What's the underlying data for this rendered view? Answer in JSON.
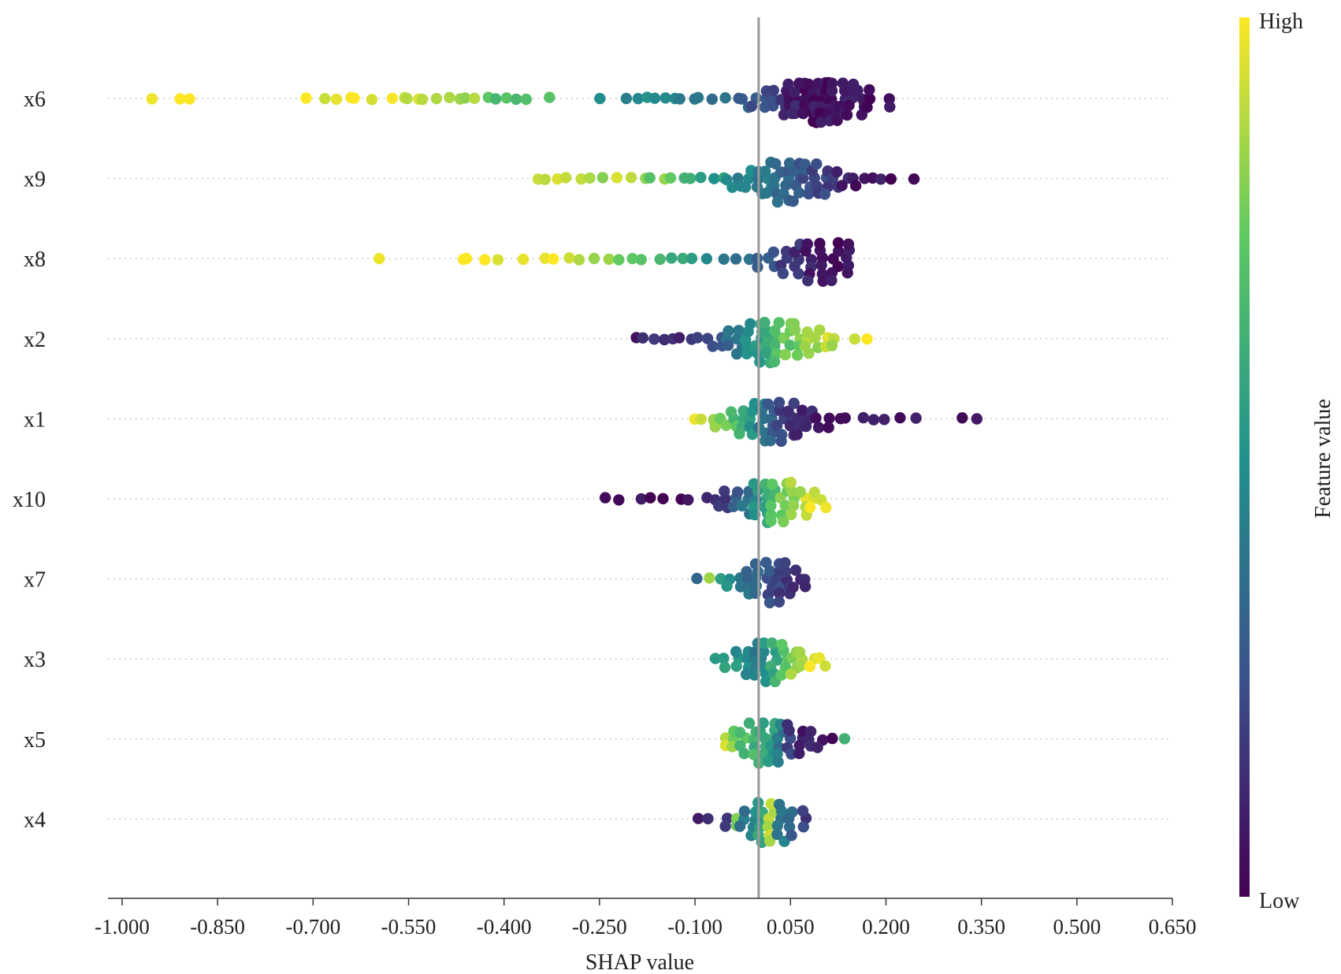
{
  "chart_data": {
    "type": "scatter",
    "subtype": "shap-beeswarm",
    "title": "",
    "xlabel": "SHAP value",
    "ylabel": "",
    "xlim": [
      -1.015,
      0.65
    ],
    "x_ticks": [
      "-1.000",
      "-0.850",
      "-0.700",
      "-0.550",
      "-0.400",
      "-0.250",
      "-0.100",
      "0.050",
      "0.200",
      "0.350",
      "0.500",
      "0.650"
    ],
    "x_tick_values": [
      -1.0,
      -0.85,
      -0.7,
      -0.55,
      -0.4,
      -0.25,
      -0.1,
      0.05,
      0.2,
      0.35,
      0.5,
      0.65
    ],
    "zero_line": 0,
    "features": [
      "x6",
      "x9",
      "x8",
      "x2",
      "x1",
      "x10",
      "x7",
      "x3",
      "x5",
      "x4"
    ],
    "colorbar": {
      "title": "Feature value",
      "high_label": "High",
      "low_label": "Low",
      "colormap": "viridis",
      "colors": [
        "#440154",
        "#3b528b",
        "#21918c",
        "#5ec962",
        "#fde725"
      ]
    },
    "series": [
      {
        "name": "x6",
        "points": [
          [
            -0.955,
            1.0
          ],
          [
            -0.915,
            1.0
          ],
          [
            -0.89,
            1.0
          ],
          [
            -0.715,
            1.0
          ],
          [
            -0.685,
            0.95
          ],
          [
            -0.66,
            1.0
          ],
          [
            -0.645,
            0.95
          ],
          [
            -0.635,
            1.0
          ],
          [
            -0.605,
            0.95
          ],
          [
            -0.58,
            1.0
          ],
          [
            -0.56,
            0.95
          ],
          [
            -0.55,
            0.9
          ],
          [
            -0.54,
            0.95
          ],
          [
            -0.525,
            0.9
          ],
          [
            -0.51,
            0.9
          ],
          [
            -0.49,
            0.85
          ],
          [
            -0.47,
            0.9
          ],
          [
            -0.46,
            0.8
          ],
          [
            -0.445,
            0.9
          ],
          [
            -0.43,
            0.75
          ],
          [
            -0.41,
            0.7
          ],
          [
            -0.39,
            0.75
          ],
          [
            -0.38,
            0.7
          ],
          [
            -0.365,
            0.7
          ],
          [
            -0.33,
            0.7
          ],
          [
            -0.25,
            0.5
          ],
          [
            -0.21,
            0.45
          ],
          [
            -0.195,
            0.5
          ],
          [
            -0.18,
            0.5
          ],
          [
            -0.165,
            0.45
          ],
          [
            -0.15,
            0.45
          ],
          [
            -0.135,
            0.4
          ],
          [
            -0.12,
            0.4
          ],
          [
            -0.105,
            0.38
          ],
          [
            -0.09,
            0.35
          ],
          [
            -0.07,
            0.35
          ],
          [
            -0.05,
            0.35
          ],
          [
            -0.035,
            0.3
          ],
          [
            -0.02,
            0.3
          ],
          [
            -0.005,
            0.25
          ],
          [
            0.01,
            0.25
          ],
          [
            0.025,
            0.22
          ],
          [
            0.04,
            0.15
          ],
          [
            0.05,
            0.1
          ],
          [
            0.06,
            0.08
          ],
          [
            0.07,
            0.05
          ],
          [
            0.08,
            0.05
          ],
          [
            0.09,
            0.05
          ],
          [
            0.1,
            0.05
          ],
          [
            0.11,
            0.05
          ],
          [
            0.12,
            0.05
          ],
          [
            0.13,
            0.08
          ],
          [
            0.145,
            0.08
          ],
          [
            0.16,
            0.05
          ],
          [
            0.175,
            0.05
          ],
          [
            0.2,
            0.05
          ]
        ],
        "max_density": 0.085
      },
      {
        "name": "x9",
        "points": [
          [
            -0.345,
            0.95
          ],
          [
            -0.33,
            0.95
          ],
          [
            -0.315,
            0.9
          ],
          [
            -0.3,
            0.95
          ],
          [
            -0.28,
            0.9
          ],
          [
            -0.26,
            0.9
          ],
          [
            -0.24,
            0.85
          ],
          [
            -0.22,
            0.9
          ],
          [
            -0.2,
            0.85
          ],
          [
            -0.18,
            0.8
          ],
          [
            -0.165,
            0.75
          ],
          [
            -0.15,
            0.8
          ],
          [
            -0.135,
            0.75
          ],
          [
            -0.12,
            0.7
          ],
          [
            -0.105,
            0.65
          ],
          [
            -0.09,
            0.6
          ],
          [
            -0.075,
            0.55
          ],
          [
            -0.06,
            0.55
          ],
          [
            -0.045,
            0.5
          ],
          [
            -0.03,
            0.45
          ],
          [
            -0.015,
            0.45
          ],
          [
            0.0,
            0.4
          ],
          [
            0.015,
            0.4
          ],
          [
            0.03,
            0.35
          ],
          [
            0.045,
            0.3
          ],
          [
            0.06,
            0.3
          ],
          [
            0.075,
            0.25
          ],
          [
            0.09,
            0.2
          ],
          [
            0.105,
            0.2
          ],
          [
            0.12,
            0.15
          ],
          [
            0.135,
            0.1
          ],
          [
            0.15,
            0.05
          ],
          [
            0.165,
            0.05
          ],
          [
            0.18,
            0.05
          ],
          [
            0.195,
            0.05
          ],
          [
            0.21,
            0.02
          ],
          [
            0.24,
            0.02
          ]
        ],
        "max_density": 0.07
      },
      {
        "name": "x8",
        "points": [
          [
            -0.59,
            1.0
          ],
          [
            -0.47,
            1.0
          ],
          [
            -0.455,
            1.0
          ],
          [
            -0.43,
            1.0
          ],
          [
            -0.415,
            1.0
          ],
          [
            -0.365,
            0.95
          ],
          [
            -0.34,
            0.95
          ],
          [
            -0.32,
            0.95
          ],
          [
            -0.3,
            0.9
          ],
          [
            -0.28,
            0.85
          ],
          [
            -0.26,
            0.85
          ],
          [
            -0.24,
            0.8
          ],
          [
            -0.22,
            0.8
          ],
          [
            -0.2,
            0.75
          ],
          [
            -0.18,
            0.7
          ],
          [
            -0.16,
            0.7
          ],
          [
            -0.14,
            0.65
          ],
          [
            -0.12,
            0.6
          ],
          [
            -0.1,
            0.55
          ],
          [
            -0.08,
            0.5
          ],
          [
            -0.06,
            0.45
          ],
          [
            -0.04,
            0.4
          ],
          [
            -0.02,
            0.35
          ],
          [
            0.0,
            0.3
          ],
          [
            0.02,
            0.25
          ],
          [
            0.04,
            0.2
          ],
          [
            0.06,
            0.15
          ],
          [
            0.08,
            0.1
          ],
          [
            0.1,
            0.05
          ],
          [
            0.12,
            0.05
          ],
          [
            0.14,
            0.05
          ]
        ],
        "max_density": 0.075
      },
      {
        "name": "x2",
        "points": [
          [
            -0.195,
            0.1
          ],
          [
            -0.18,
            0.1
          ],
          [
            -0.165,
            0.15
          ],
          [
            -0.15,
            0.1
          ],
          [
            -0.135,
            0.2
          ],
          [
            -0.12,
            0.15
          ],
          [
            -0.105,
            0.2
          ],
          [
            -0.09,
            0.25
          ],
          [
            -0.075,
            0.2
          ],
          [
            -0.06,
            0.3
          ],
          [
            -0.045,
            0.35
          ],
          [
            -0.03,
            0.4
          ],
          [
            -0.015,
            0.5
          ],
          [
            0.0,
            0.55
          ],
          [
            0.015,
            0.6
          ],
          [
            0.03,
            0.7
          ],
          [
            0.045,
            0.75
          ],
          [
            0.06,
            0.8
          ],
          [
            0.075,
            0.85
          ],
          [
            0.09,
            0.85
          ],
          [
            0.105,
            0.9
          ],
          [
            0.12,
            0.9
          ],
          [
            0.145,
            0.95
          ],
          [
            0.17,
            1.0
          ]
        ],
        "max_density": 0.07
      },
      {
        "name": "x1",
        "points": [
          [
            -0.1,
            0.95
          ],
          [
            -0.085,
            0.9
          ],
          [
            -0.07,
            0.85
          ],
          [
            -0.055,
            0.8
          ],
          [
            -0.04,
            0.7
          ],
          [
            -0.025,
            0.6
          ],
          [
            -0.01,
            0.5
          ],
          [
            0.005,
            0.4
          ],
          [
            0.02,
            0.3
          ],
          [
            0.035,
            0.2
          ],
          [
            0.05,
            0.15
          ],
          [
            0.065,
            0.1
          ],
          [
            0.08,
            0.1
          ],
          [
            0.095,
            0.05
          ],
          [
            0.11,
            0.05
          ],
          [
            0.125,
            0.05
          ],
          [
            0.14,
            0.05
          ],
          [
            0.16,
            0.05
          ],
          [
            0.18,
            0.05
          ],
          [
            0.2,
            0.05
          ],
          [
            0.22,
            0.05
          ],
          [
            0.25,
            0.05
          ],
          [
            0.325,
            0.02
          ],
          [
            0.345,
            0.02
          ]
        ],
        "max_density": 0.065
      },
      {
        "name": "x10",
        "points": [
          [
            -0.245,
            0.05
          ],
          [
            -0.22,
            0.05
          ],
          [
            -0.19,
            0.05
          ],
          [
            -0.165,
            0.05
          ],
          [
            -0.145,
            0.05
          ],
          [
            -0.125,
            0.05
          ],
          [
            -0.105,
            0.05
          ],
          [
            -0.085,
            0.1
          ],
          [
            -0.065,
            0.15
          ],
          [
            -0.05,
            0.2
          ],
          [
            -0.035,
            0.3
          ],
          [
            -0.02,
            0.4
          ],
          [
            -0.005,
            0.5
          ],
          [
            0.01,
            0.6
          ],
          [
            0.025,
            0.7
          ],
          [
            0.04,
            0.8
          ],
          [
            0.055,
            0.85
          ],
          [
            0.07,
            0.9
          ],
          [
            0.085,
            0.95
          ],
          [
            0.1,
            0.95
          ]
        ],
        "max_density": 0.065
      },
      {
        "name": "x7",
        "points": [
          [
            -0.1,
            0.3
          ],
          [
            -0.075,
            0.8
          ],
          [
            -0.06,
            0.6
          ],
          [
            -0.045,
            0.5
          ],
          [
            -0.03,
            0.4
          ],
          [
            -0.015,
            0.35
          ],
          [
            0.0,
            0.3
          ],
          [
            0.015,
            0.25
          ],
          [
            0.03,
            0.2
          ],
          [
            0.045,
            0.15
          ],
          [
            0.06,
            0.1
          ],
          [
            0.075,
            0.08
          ]
        ],
        "max_density": 0.045
      },
      {
        "name": "x3",
        "points": [
          [
            -0.065,
            0.6
          ],
          [
            -0.05,
            0.55
          ],
          [
            -0.035,
            0.5
          ],
          [
            -0.02,
            0.45
          ],
          [
            -0.005,
            0.4
          ],
          [
            0.01,
            0.5
          ],
          [
            0.025,
            0.6
          ],
          [
            0.04,
            0.75
          ],
          [
            0.055,
            0.85
          ],
          [
            0.07,
            0.9
          ],
          [
            0.085,
            0.95
          ],
          [
            0.1,
            0.95
          ]
        ],
        "max_density": 0.055
      },
      {
        "name": "x5",
        "points": [
          [
            -0.055,
            0.9
          ],
          [
            -0.04,
            0.8
          ],
          [
            -0.025,
            0.7
          ],
          [
            -0.01,
            0.65
          ],
          [
            0.005,
            0.6
          ],
          [
            0.02,
            0.55
          ],
          [
            0.035,
            0.4
          ],
          [
            0.05,
            0.2
          ],
          [
            0.065,
            0.1
          ],
          [
            0.08,
            0.08
          ],
          [
            0.095,
            0.05
          ],
          [
            0.11,
            0.05
          ],
          [
            0.135,
            0.65
          ]
        ],
        "max_density": 0.055
      },
      {
        "name": "x4",
        "points": [
          [
            -0.095,
            0.05
          ],
          [
            -0.075,
            0.1
          ],
          [
            -0.055,
            0.15
          ],
          [
            -0.04,
            0.8
          ],
          [
            -0.025,
            0.4
          ],
          [
            -0.01,
            0.5
          ],
          [
            0.005,
            0.55
          ],
          [
            0.02,
            0.9
          ],
          [
            0.035,
            0.4
          ],
          [
            0.05,
            0.3
          ],
          [
            0.07,
            0.2
          ]
        ],
        "max_density": 0.05
      }
    ]
  }
}
